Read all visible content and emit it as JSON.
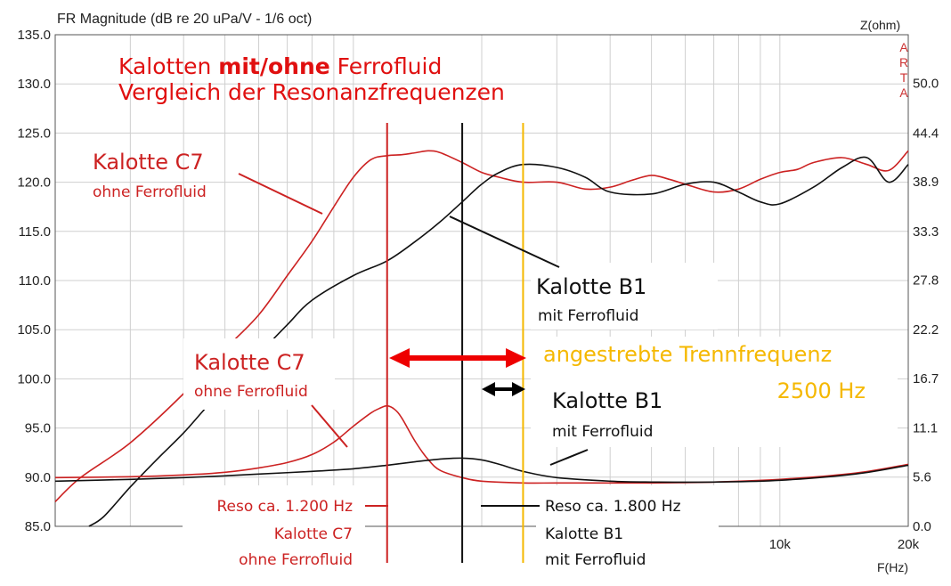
{
  "chart_data": {
    "type": "line",
    "title": "FR Magnitude (dB re 20 uPa/V - 1/6 oct)",
    "ylabel_right": "Z(ohm)",
    "xlabel": "F(Hz)",
    "x_scale": "log",
    "xlim": [
      200,
      20000
    ],
    "ylim": [
      85,
      135
    ],
    "ylim_right": [
      0,
      55.5
    ],
    "y_ticks": [
      "135.0",
      "130.0",
      "125.0",
      "120.0",
      "115.0",
      "110.0",
      "105.0",
      "100.0",
      "95.0",
      "90.0",
      "85.0"
    ],
    "y_right_ticks": [
      "50.0",
      "44.4",
      "38.9",
      "33.3",
      "27.8",
      "22.2",
      "16.7",
      "11.1",
      "5.6",
      "0.0"
    ],
    "x_tick_labels": [
      {
        "x": 10000,
        "label": "10k"
      },
      {
        "x": 20000,
        "label": "20k"
      }
    ],
    "grid": true,
    "watermark": [
      "A",
      "R",
      "T",
      "A"
    ],
    "colors": {
      "c7": "#cc2222",
      "b1": "#111111",
      "target": "#f5b800"
    },
    "series": [
      {
        "name": "Kalotte C7 ohne Ferrofluid (SPL)",
        "axis": "left",
        "color": "#cc2222",
        "x": [
          200,
          230,
          300,
          400,
          500,
          600,
          700,
          800,
          900,
          1000,
          1100,
          1200,
          1300,
          1400,
          1500,
          1600,
          1800,
          2000,
          2200,
          2500,
          3000,
          3500,
          4000,
          4500,
          5000,
          5500,
          6000,
          7000,
          8000,
          9000,
          10000,
          11000,
          12000,
          14000,
          16000,
          18000,
          20000
        ],
        "y": [
          87.5,
          90.0,
          93.5,
          98.5,
          103.0,
          106.5,
          110.5,
          114.0,
          117.5,
          120.5,
          122.3,
          122.7,
          122.8,
          123.0,
          123.2,
          123.0,
          122.0,
          121.0,
          120.5,
          120.0,
          120.0,
          119.3,
          119.5,
          120.2,
          120.7,
          120.3,
          119.8,
          119.0,
          119.3,
          120.3,
          121.0,
          121.3,
          122.0,
          122.5,
          121.8,
          121.2,
          123.2
        ]
      },
      {
        "name": "Kalotte B1 mit Ferrofluid (SPL)",
        "axis": "left",
        "color": "#111111",
        "x": [
          240,
          260,
          300,
          350,
          400,
          450,
          500,
          600,
          700,
          800,
          1000,
          1200,
          1400,
          1600,
          1800,
          2000,
          2200,
          2500,
          3000,
          3500,
          4000,
          5000,
          6000,
          7000,
          8000,
          9000,
          10000,
          12000,
          14000,
          16000,
          18000,
          20000
        ],
        "y": [
          85.0,
          86.0,
          89.0,
          92.0,
          94.5,
          97.0,
          99.0,
          102.5,
          105.5,
          108.0,
          110.5,
          112.0,
          114.0,
          116.0,
          118.0,
          119.8,
          121.0,
          121.8,
          121.5,
          120.5,
          119.0,
          118.8,
          119.8,
          120.0,
          119.0,
          118.0,
          117.8,
          119.5,
          121.5,
          122.5,
          120.0,
          121.8
        ]
      },
      {
        "name": "Kalotte C7 ohne Ferrofluid (Impedanz)",
        "axis": "right",
        "color": "#cc2222",
        "x": [
          200,
          300,
          400,
          500,
          600,
          700,
          800,
          900,
          1000,
          1100,
          1150,
          1200,
          1250,
          1300,
          1400,
          1500,
          1600,
          1800,
          2000,
          2500,
          3000,
          4000,
          5000,
          7000,
          10000,
          15000,
          20000
        ],
        "y": [
          5.5,
          5.6,
          5.8,
          6.1,
          6.6,
          7.2,
          8.1,
          9.5,
          11.3,
          12.8,
          13.3,
          13.6,
          13.2,
          12.2,
          9.5,
          7.5,
          6.3,
          5.5,
          5.1,
          4.9,
          4.9,
          4.9,
          4.9,
          5.0,
          5.3,
          6.0,
          7.0
        ]
      },
      {
        "name": "Kalotte B1 mit Ferrofluid (Impedanz)",
        "axis": "right",
        "color": "#111111",
        "x": [
          200,
          300,
          400,
          500,
          600,
          800,
          1000,
          1200,
          1400,
          1600,
          1800,
          2000,
          2200,
          2500,
          3000,
          4000,
          5000,
          7000,
          10000,
          15000,
          20000
        ],
        "y": [
          5.1,
          5.3,
          5.5,
          5.7,
          5.9,
          6.2,
          6.5,
          6.9,
          7.3,
          7.6,
          7.7,
          7.5,
          7.0,
          6.2,
          5.5,
          5.1,
          5.0,
          5.0,
          5.2,
          5.9,
          6.9
        ]
      }
    ],
    "markers": [
      {
        "x": 1200,
        "color": "#cc2222"
      },
      {
        "x": 1800,
        "color": "#111111"
      },
      {
        "x": 2500,
        "color": "#f5b800"
      }
    ]
  },
  "annotations": {
    "heading_1_pre": "Kalotten ",
    "heading_1_bold": "mit/ohne",
    "heading_1_post": " Ferrofluid",
    "heading_2": "Vergleich der Resonanzfrequenzen",
    "c7_top_name": "Kalotte C7",
    "c7_top_sub": "ohne Ferrofluid",
    "c7_mid_name": "Kalotte C7",
    "c7_mid_sub": "ohne Ferrofluid",
    "b1_top_name": "Kalotte B1",
    "b1_top_sub": "mit Ferrofluid",
    "b1_mid_name": "Kalotte B1",
    "b1_mid_sub": "mit Ferrofluid",
    "target_line1": "angestrebte Trennfrequenz",
    "target_line2": "2500 Hz",
    "reso_c7_1": "Reso ca. 1.200 Hz",
    "reso_c7_2": "Kalotte C7",
    "reso_c7_3": "ohne Ferrofluid",
    "reso_b1_1": "Reso ca. 1.800 Hz",
    "reso_b1_2": "Kalotte B1",
    "reso_b1_3": "mit Ferrofluid"
  }
}
